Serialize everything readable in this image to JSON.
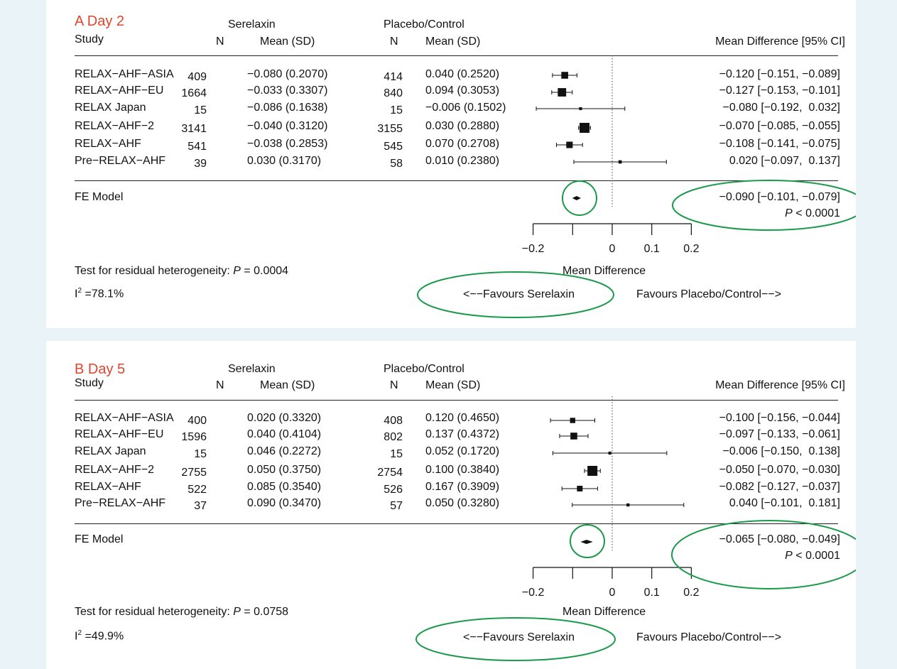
{
  "chart_data": [
    {
      "type": "forest",
      "title": "A Day 2",
      "headers": {
        "study": "Study",
        "serelaxin": "Serelaxin",
        "placebo": "Placebo/Control",
        "n": "N",
        "mean_sd": "Mean (SD)",
        "effect": "Mean Difference [95% CI]"
      },
      "studies": [
        {
          "name": "RELAX−AHF−ASIA",
          "n1": "409",
          "mean1": "−0.080 (0.2070)",
          "n2": "414",
          "mean2": "0.040 (0.2520)",
          "md": -0.12,
          "lo": -0.151,
          "hi": -0.089,
          "weight": 0.6,
          "ci_text": "−0.120 [−0.151, −0.089]"
        },
        {
          "name": "RELAX−AHF−EU",
          "n1": "1664",
          "mean1": "−0.033 (0.3307)",
          "n2": "840",
          "mean2": "0.094 (0.3053)",
          "md": -0.127,
          "lo": -0.153,
          "hi": -0.101,
          "weight": 0.8,
          "ci_text": "−0.127 [−0.153, −0.101]"
        },
        {
          "name": "RELAX Japan",
          "n1": "15",
          "mean1": "−0.086 (0.1638)",
          "n2": "15",
          "mean2": "−0.006 (0.1502)",
          "md": -0.08,
          "lo": -0.192,
          "hi": 0.032,
          "weight": 0.1,
          "ci_text": "−0.080 [−0.192,  0.032]"
        },
        {
          "name": "RELAX−AHF−2",
          "n1": "3141",
          "mean1": "−0.040 (0.3120)",
          "n2": "3155",
          "mean2": "0.030 (0.2880)",
          "md": -0.07,
          "lo": -0.085,
          "hi": -0.055,
          "weight": 1.0,
          "ci_text": "−0.070 [−0.085, −0.055]"
        },
        {
          "name": "RELAX−AHF",
          "n1": "541",
          "mean1": "−0.038 (0.2853)",
          "n2": "545",
          "mean2": "0.070 (0.2708)",
          "md": -0.108,
          "lo": -0.141,
          "hi": -0.075,
          "weight": 0.55,
          "ci_text": "−0.108 [−0.141, −0.075]"
        },
        {
          "name": "Pre−RELAX−AHF",
          "n1": "39",
          "mean1": "0.030 (0.3170)",
          "n2": "58",
          "mean2": "0.010 (0.2380)",
          "md": 0.02,
          "lo": -0.097,
          "hi": 0.137,
          "weight": 0.15,
          "ci_text": "0.020 [−0.097,  0.137]"
        }
      ],
      "summary": {
        "label": "FE Model",
        "md": -0.09,
        "lo": -0.101,
        "hi": -0.079,
        "ci_text": "−0.090 [−0.101, −0.079]",
        "p_prefix": "P",
        "p_text": " < 0.0001"
      },
      "x_ticks": [
        -0.2,
        -0.1,
        0,
        0.1,
        0.2
      ],
      "x_tick_labels": [
        "−0.2",
        "",
        "0",
        "0.1",
        "0.2"
      ],
      "xlim": [
        -0.2,
        0.2
      ],
      "xlabel": "Mean Difference",
      "favours_left": "<−−Favours Serelaxin",
      "favours_right": "Favours Placebo/Control−−>",
      "heterogeneity": {
        "prefix": "Test for residual heterogeneity: ",
        "p_label": "P",
        "value": " = 0.0004",
        "i2_prefix": "I",
        "i2_value": " =78.1%"
      }
    },
    {
      "type": "forest",
      "title": "B Day 5",
      "headers": {
        "study": "Study",
        "serelaxin": "Serelaxin",
        "placebo": "Placebo/Control",
        "n": "N",
        "mean_sd": "Mean (SD)",
        "effect": "Mean Difference [95% CI]"
      },
      "studies": [
        {
          "name": "RELAX−AHF−ASIA",
          "n1": "400",
          "mean1": "0.020 (0.3320)",
          "n2": "408",
          "mean2": "0.120 (0.4650)",
          "md": -0.1,
          "lo": -0.156,
          "hi": -0.044,
          "weight": 0.4,
          "ci_text": "−0.100 [−0.156, −0.044]"
        },
        {
          "name": "RELAX−AHF−EU",
          "n1": "1596",
          "mean1": "0.040 (0.4104)",
          "n2": "802",
          "mean2": "0.137 (0.4372)",
          "md": -0.097,
          "lo": -0.133,
          "hi": -0.061,
          "weight": 0.6,
          "ci_text": "−0.097 [−0.133, −0.061]"
        },
        {
          "name": "RELAX Japan",
          "n1": "15",
          "mean1": "0.046 (0.2272)",
          "n2": "15",
          "mean2": "0.052 (0.1720)",
          "md": -0.006,
          "lo": -0.15,
          "hi": 0.138,
          "weight": 0.1,
          "ci_text": "−0.006 [−0.150,  0.138]"
        },
        {
          "name": "RELAX−AHF−2",
          "n1": "2755",
          "mean1": "0.050 (0.3750)",
          "n2": "2754",
          "mean2": "0.100 (0.3840)",
          "md": -0.05,
          "lo": -0.07,
          "hi": -0.03,
          "weight": 1.0,
          "ci_text": "−0.050 [−0.070, −0.030]"
        },
        {
          "name": "RELAX−AHF",
          "n1": "522",
          "mean1": "0.085 (0.3540)",
          "n2": "526",
          "mean2": "0.167 (0.3909)",
          "md": -0.082,
          "lo": -0.127,
          "hi": -0.037,
          "weight": 0.45,
          "ci_text": "−0.082 [−0.127, −0.037]"
        },
        {
          "name": "Pre−RELAX−AHF",
          "n1": "37",
          "mean1": "0.090 (0.3470)",
          "n2": "57",
          "mean2": "0.050 (0.3280)",
          "md": 0.04,
          "lo": -0.101,
          "hi": 0.181,
          "weight": 0.12,
          "ci_text": "0.040 [−0.101,  0.181]"
        }
      ],
      "summary": {
        "label": "FE Model",
        "md": -0.065,
        "lo": -0.08,
        "hi": -0.049,
        "ci_text": "−0.065 [−0.080, −0.049]",
        "p_prefix": "P",
        "p_text": " < 0.0001"
      },
      "x_ticks": [
        -0.2,
        -0.1,
        0,
        0.1,
        0.2
      ],
      "x_tick_labels": [
        "−0.2",
        "",
        "0",
        "0.1",
        "0.2"
      ],
      "xlim": [
        -0.2,
        0.2
      ],
      "xlabel": "Mean Difference",
      "favours_left": "<−−Favours Serelaxin",
      "favours_right": "Favours Placebo/Control−−>",
      "heterogeneity": {
        "prefix": "Test for residual heterogeneity: ",
        "p_label": "P",
        "value": " = 0.0758",
        "i2_prefix": "I",
        "i2_value": " =49.9%"
      }
    }
  ],
  "colors": {
    "title": "#e0452d",
    "highlight": "#1a9a4a",
    "background": "#e9f3f8"
  }
}
